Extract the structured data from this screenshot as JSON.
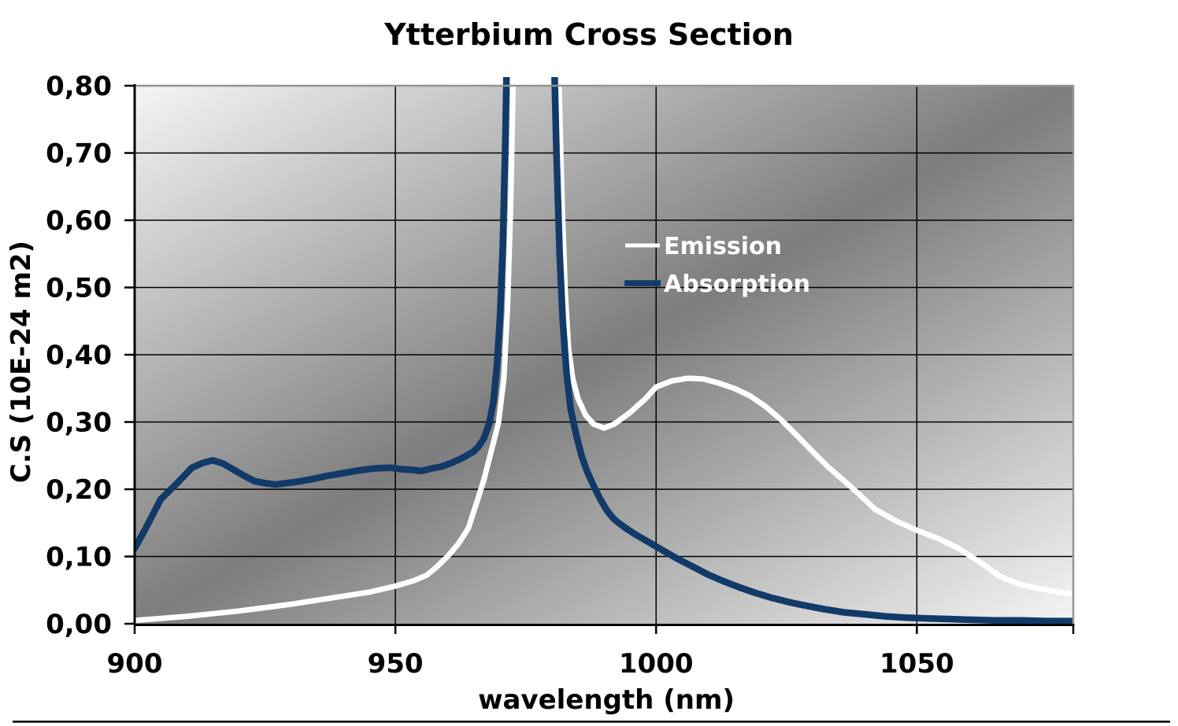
{
  "title": "Ytterbium Cross Section",
  "axes": {
    "x": {
      "label": "wavelength (nm)",
      "min": 900,
      "max": 1080,
      "ticks": [
        900,
        950,
        1000,
        1050
      ],
      "tick_labels": [
        "900",
        "950",
        "1000",
        "1050"
      ]
    },
    "y": {
      "label": "C.S (10E-24 m2)",
      "min": 0,
      "max": 0.8,
      "ticks": [
        0,
        0.1,
        0.2,
        0.3,
        0.4,
        0.5,
        0.6,
        0.7,
        0.8
      ],
      "tick_labels": [
        "0,00",
        "0,10",
        "0,20",
        "0,30",
        "0,40",
        "0,50",
        "0,60",
        "0,70",
        "0,80"
      ]
    }
  },
  "legend": {
    "items": [
      {
        "label": "Emission",
        "color": "#ffffff"
      },
      {
        "label": "Absorption",
        "color": "#113a68"
      }
    ]
  },
  "colors": {
    "emission": "#ffffff",
    "absorption": "#113a68",
    "wall_gradient_light": "#f5f5f5",
    "wall_gradient_dark": "#7d7d7d",
    "grid": "#000000",
    "axis": "#000000",
    "plot_border": "#949494",
    "text": "#000000",
    "page_background": "#ffffff"
  },
  "chart_data": {
    "type": "line",
    "title": "Ytterbium Cross Section",
    "xlabel": "wavelength (nm)",
    "ylabel": "C.S (10E-24 m2)",
    "xlim": [
      900,
      1080
    ],
    "ylim": [
      0,
      0.8
    ],
    "grid": true,
    "legend_position": "inside, upper middle",
    "series": [
      {
        "name": "Emission",
        "color": "#ffffff",
        "stroke_width": 7,
        "points": [
          [
            900,
            0.005
          ],
          [
            905,
            0.008
          ],
          [
            910,
            0.011
          ],
          [
            915,
            0.015
          ],
          [
            920,
            0.019
          ],
          [
            925,
            0.024
          ],
          [
            930,
            0.029
          ],
          [
            935,
            0.035
          ],
          [
            940,
            0.041
          ],
          [
            945,
            0.047
          ],
          [
            950,
            0.056
          ],
          [
            953.5,
            0.064
          ],
          [
            956,
            0.072
          ],
          [
            958,
            0.085
          ],
          [
            960,
            0.1
          ],
          [
            962,
            0.118
          ],
          [
            964,
            0.142
          ],
          [
            966,
            0.19
          ],
          [
            967,
            0.215
          ],
          [
            968,
            0.245
          ],
          [
            969,
            0.275
          ],
          [
            969.8,
            0.3
          ],
          [
            970.8,
            0.365
          ],
          [
            971.5,
            0.47
          ],
          [
            972.1,
            0.62
          ],
          [
            972.7,
            0.85
          ],
          [
            973.5,
            1.6
          ],
          [
            975,
            2.8
          ],
          [
            977,
            2.8
          ],
          [
            979,
            1.8
          ],
          [
            980.6,
            1.0
          ],
          [
            981.4,
            0.8
          ],
          [
            982.0,
            0.62
          ],
          [
            982.6,
            0.49
          ],
          [
            983.2,
            0.41
          ],
          [
            984,
            0.365
          ],
          [
            985,
            0.335
          ],
          [
            986.5,
            0.31
          ],
          [
            988,
            0.297
          ],
          [
            990,
            0.291
          ],
          [
            992,
            0.297
          ],
          [
            995,
            0.314
          ],
          [
            998,
            0.335
          ],
          [
            1000,
            0.352
          ],
          [
            1003,
            0.361
          ],
          [
            1006,
            0.365
          ],
          [
            1009,
            0.364
          ],
          [
            1012,
            0.358
          ],
          [
            1015,
            0.35
          ],
          [
            1018,
            0.339
          ],
          [
            1021,
            0.323
          ],
          [
            1024,
            0.303
          ],
          [
            1027,
            0.28
          ],
          [
            1030,
            0.256
          ],
          [
            1033,
            0.233
          ],
          [
            1036,
            0.213
          ],
          [
            1039,
            0.192
          ],
          [
            1042,
            0.17
          ],
          [
            1046,
            0.153
          ],
          [
            1050,
            0.139
          ],
          [
            1054,
            0.127
          ],
          [
            1058,
            0.112
          ],
          [
            1062,
            0.092
          ],
          [
            1066,
            0.07
          ],
          [
            1070,
            0.058
          ],
          [
            1075,
            0.05
          ],
          [
            1080,
            0.044
          ]
        ]
      },
      {
        "name": "Absorption",
        "color": "#113a68",
        "stroke_width": 8.5,
        "points": [
          [
            900,
            0.112
          ],
          [
            902,
            0.14
          ],
          [
            905,
            0.185
          ],
          [
            908,
            0.208
          ],
          [
            911,
            0.232
          ],
          [
            913,
            0.239
          ],
          [
            915,
            0.243
          ],
          [
            917,
            0.238
          ],
          [
            919,
            0.229
          ],
          [
            921,
            0.22
          ],
          [
            923,
            0.212
          ],
          [
            925,
            0.209
          ],
          [
            927,
            0.207
          ],
          [
            929,
            0.209
          ],
          [
            931,
            0.211
          ],
          [
            934,
            0.215
          ],
          [
            937,
            0.22
          ],
          [
            940,
            0.224
          ],
          [
            943,
            0.228
          ],
          [
            946,
            0.231
          ],
          [
            949,
            0.232
          ],
          [
            951,
            0.23
          ],
          [
            953,
            0.229
          ],
          [
            955,
            0.227
          ],
          [
            957,
            0.231
          ],
          [
            959,
            0.234
          ],
          [
            961,
            0.24
          ],
          [
            963,
            0.247
          ],
          [
            965,
            0.256
          ],
          [
            966,
            0.264
          ],
          [
            967,
            0.276
          ],
          [
            968,
            0.298
          ],
          [
            968.8,
            0.33
          ],
          [
            969.5,
            0.385
          ],
          [
            970.1,
            0.46
          ],
          [
            970.6,
            0.56
          ],
          [
            971.1,
            0.72
          ],
          [
            971.6,
            0.95
          ],
          [
            972.3,
            1.8
          ],
          [
            974,
            3.0
          ],
          [
            976,
            3.0
          ],
          [
            978,
            2.0
          ],
          [
            979.5,
            1.2
          ],
          [
            980.2,
            0.92
          ],
          [
            980.9,
            0.7
          ],
          [
            981.5,
            0.55
          ],
          [
            982.1,
            0.45
          ],
          [
            982.8,
            0.375
          ],
          [
            983.6,
            0.32
          ],
          [
            984.7,
            0.28
          ],
          [
            985.7,
            0.25
          ],
          [
            986.7,
            0.228
          ],
          [
            988,
            0.205
          ],
          [
            989.3,
            0.185
          ],
          [
            990.6,
            0.168
          ],
          [
            992,
            0.155
          ],
          [
            994,
            0.143
          ],
          [
            996,
            0.133
          ],
          [
            998,
            0.124
          ],
          [
            1000,
            0.115
          ],
          [
            1002,
            0.106
          ],
          [
            1004,
            0.097
          ],
          [
            1006,
            0.089
          ],
          [
            1008,
            0.081
          ],
          [
            1010,
            0.073
          ],
          [
            1013,
            0.063
          ],
          [
            1016,
            0.054
          ],
          [
            1019,
            0.046
          ],
          [
            1022,
            0.039
          ],
          [
            1025,
            0.033
          ],
          [
            1028,
            0.028
          ],
          [
            1032,
            0.022
          ],
          [
            1036,
            0.017
          ],
          [
            1040,
            0.014
          ],
          [
            1044,
            0.011
          ],
          [
            1048,
            0.009
          ],
          [
            1052,
            0.008
          ],
          [
            1056,
            0.007
          ],
          [
            1060,
            0.006
          ],
          [
            1065,
            0.005
          ],
          [
            1070,
            0.005
          ],
          [
            1075,
            0.004
          ],
          [
            1080,
            0.004
          ]
        ]
      }
    ]
  }
}
